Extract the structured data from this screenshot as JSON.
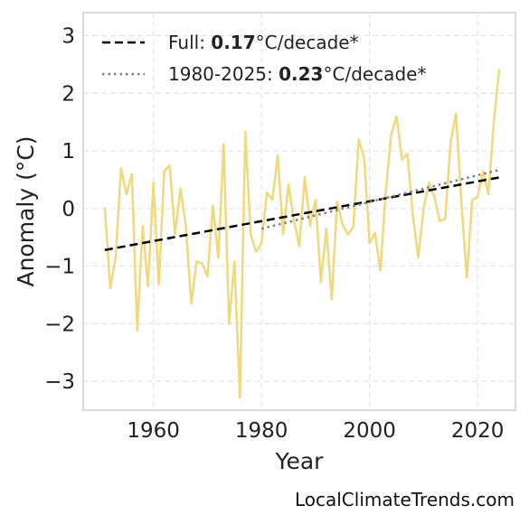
{
  "chart_data": {
    "type": "line",
    "xlabel": "Year",
    "ylabel": "Anomaly (°C)",
    "xlim": [
      1947,
      2027
    ],
    "ylim": [
      -3.5,
      3.4
    ],
    "x_ticks": [
      1960,
      1980,
      2000,
      2020
    ],
    "y_ticks": [
      -3,
      -2,
      -1,
      0,
      1,
      2,
      3
    ],
    "y_tick_labels": [
      "−3",
      "−2",
      "−1",
      "0",
      "1",
      "2",
      "3"
    ],
    "grid": true,
    "legend_position": "top-left",
    "series": [
      {
        "x": [
          1951,
          1952,
          1953,
          1954,
          1955,
          1956,
          1957,
          1958,
          1959,
          1960,
          1961,
          1962,
          1963,
          1964,
          1965,
          1966,
          1967,
          1968,
          1969,
          1970,
          1971,
          1972,
          1973,
          1974,
          1975,
          1976,
          1977,
          1978,
          1979,
          1980,
          1981,
          1982,
          1983,
          1984,
          1985,
          1986,
          1987,
          1988,
          1989,
          1990,
          1991,
          1992,
          1993,
          1994,
          1995,
          1996,
          1997,
          1998,
          1999,
          2000,
          2001,
          2002,
          2003,
          2004,
          2005,
          2006,
          2007,
          2008,
          2009,
          2010,
          2011,
          2012,
          2013,
          2014,
          2015,
          2016,
          2017,
          2018,
          2019,
          2020,
          2021,
          2022,
          2023,
          2024
        ],
        "y": [
          0.02,
          -1.38,
          -0.85,
          0.7,
          0.25,
          0.6,
          -2.12,
          -0.3,
          -1.35,
          0.45,
          -1.32,
          0.65,
          0.75,
          -0.45,
          0.35,
          -0.3,
          -1.65,
          -0.92,
          -0.95,
          -1.18,
          0.05,
          -0.85,
          1.12,
          -2.0,
          -0.92,
          -3.28,
          1.33,
          -0.45,
          -0.75,
          -0.6,
          0.28,
          0.15,
          0.92,
          -0.45,
          0.42,
          -0.2,
          -0.65,
          0.55,
          -0.3,
          0.15,
          -1.28,
          -0.35,
          -1.58,
          0.12,
          -0.28,
          -0.45,
          -0.32,
          1.2,
          0.88,
          -0.6,
          -0.42,
          -1.08,
          0.3,
          1.28,
          1.6,
          0.85,
          0.95,
          -0.1,
          -0.85,
          0.0,
          0.45,
          0.2,
          -0.22,
          -0.18,
          1.15,
          1.65,
          0.1,
          -1.2,
          0.15,
          0.2,
          0.65,
          0.25,
          1.5,
          2.42
        ],
        "color": "#f0d87c"
      },
      {
        "name": "Full:",
        "name_value": "0.17",
        "name_unit": "°C/decade*",
        "style": "dashed",
        "color": "#000000",
        "x": [
          1951,
          2024
        ],
        "y": [
          -0.72,
          0.54
        ]
      },
      {
        "name": "1980-2025:",
        "name_value": "0.23",
        "name_unit": "°C/decade*",
        "style": "dotted",
        "color": "#7f7f7f",
        "x": [
          1980,
          2024
        ],
        "y": [
          -0.35,
          0.67
        ]
      }
    ]
  },
  "credit": "LocalClimateTrends.com"
}
